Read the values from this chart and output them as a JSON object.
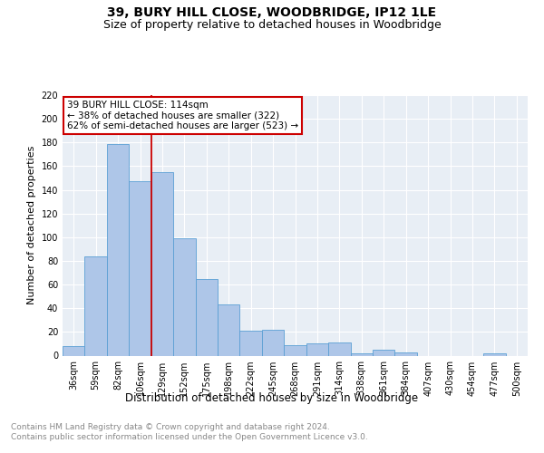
{
  "title": "39, BURY HILL CLOSE, WOODBRIDGE, IP12 1LE",
  "subtitle": "Size of property relative to detached houses in Woodbridge",
  "xlabel": "Distribution of detached houses by size in Woodbridge",
  "ylabel": "Number of detached properties",
  "categories": [
    "36sqm",
    "59sqm",
    "82sqm",
    "106sqm",
    "129sqm",
    "152sqm",
    "175sqm",
    "198sqm",
    "222sqm",
    "245sqm",
    "268sqm",
    "291sqm",
    "314sqm",
    "338sqm",
    "361sqm",
    "384sqm",
    "407sqm",
    "430sqm",
    "454sqm",
    "477sqm",
    "500sqm"
  ],
  "values": [
    8,
    84,
    179,
    147,
    155,
    99,
    65,
    43,
    21,
    22,
    9,
    10,
    11,
    2,
    5,
    3,
    0,
    0,
    0,
    2,
    0
  ],
  "bar_color": "#aec6e8",
  "bar_edge_color": "#5a9fd4",
  "vline_x": 3.5,
  "vline_color": "#cc0000",
  "annotation_text": "39 BURY HILL CLOSE: 114sqm\n← 38% of detached houses are smaller (322)\n62% of semi-detached houses are larger (523) →",
  "annotation_box_edgecolor": "#cc0000",
  "ylim": [
    0,
    220
  ],
  "yticks": [
    0,
    20,
    40,
    60,
    80,
    100,
    120,
    140,
    160,
    180,
    200,
    220
  ],
  "background_color": "#e8eef5",
  "footer_text": "Contains HM Land Registry data © Crown copyright and database right 2024.\nContains public sector information licensed under the Open Government Licence v3.0.",
  "title_fontsize": 10,
  "subtitle_fontsize": 9,
  "xlabel_fontsize": 8.5,
  "ylabel_fontsize": 8,
  "tick_fontsize": 7,
  "annotation_fontsize": 7.5,
  "footer_fontsize": 6.5
}
